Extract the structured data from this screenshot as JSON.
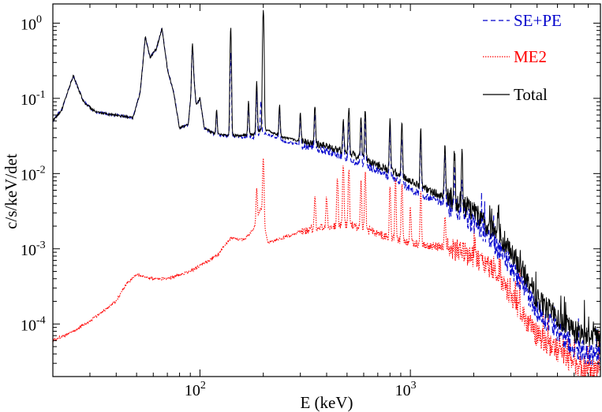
{
  "chart_data": {
    "type": "line",
    "title": "",
    "xlabel": "E (keV)",
    "ylabel": "c/s/keV/det",
    "xscale": "log",
    "yscale": "log",
    "xlim": [
      20,
      8000
    ],
    "ylim": [
      2e-05,
      1.8
    ],
    "grid": false,
    "legend_position": "top-right",
    "x_ticks": [
      {
        "value": 100,
        "label": "10",
        "sup": "2"
      },
      {
        "value": 1000,
        "label": "10",
        "sup": "3"
      }
    ],
    "y_ticks": [
      {
        "value": 1,
        "label": "10",
        "sup": "0"
      },
      {
        "value": 0.1,
        "label": "10",
        "sup": "-1"
      },
      {
        "value": 0.01,
        "label": "10",
        "sup": "-2"
      },
      {
        "value": 0.001,
        "label": "10",
        "sup": "-3"
      },
      {
        "value": 0.0001,
        "label": "10",
        "sup": "-4"
      }
    ],
    "series": [
      {
        "name": "SE+PE",
        "color": "#0000cc",
        "dash": "dashed",
        "continuum": [
          [
            20,
            0.05
          ],
          [
            22,
            0.07
          ],
          [
            25,
            0.2
          ],
          [
            28,
            0.09
          ],
          [
            32,
            0.065
          ],
          [
            40,
            0.06
          ],
          [
            48,
            0.055
          ],
          [
            52,
            0.12
          ],
          [
            55,
            0.65
          ],
          [
            58,
            0.35
          ],
          [
            62,
            0.45
          ],
          [
            66,
            0.85
          ],
          [
            70,
            0.25
          ],
          [
            75,
            0.12
          ],
          [
            80,
            0.04
          ],
          [
            88,
            0.045
          ],
          [
            93,
            0.25
          ],
          [
            96,
            0.08
          ],
          [
            100,
            0.1
          ],
          [
            105,
            0.04
          ],
          [
            120,
            0.032
          ],
          [
            150,
            0.031
          ],
          [
            180,
            0.03
          ],
          [
            200,
            0.035
          ],
          [
            250,
            0.027
          ],
          [
            300,
            0.024
          ],
          [
            400,
            0.02
          ],
          [
            500,
            0.016
          ],
          [
            600,
            0.013
          ],
          [
            700,
            0.011
          ],
          [
            800,
            0.009
          ],
          [
            900,
            0.0075
          ],
          [
            1000,
            0.0062
          ],
          [
            1200,
            0.0048
          ],
          [
            1400,
            0.004
          ],
          [
            1600,
            0.0035
          ],
          [
            1800,
            0.0028
          ],
          [
            2000,
            0.0022
          ],
          [
            2500,
            0.0012
          ],
          [
            3000,
            0.0006
          ],
          [
            3500,
            0.0003
          ],
          [
            4000,
            0.00015
          ],
          [
            5000,
            8e-05
          ],
          [
            6000,
            5e-05
          ],
          [
            7000,
            4e-05
          ],
          [
            8000,
            4e-05
          ]
        ],
        "peaks": [
          [
            92,
            0.3
          ],
          [
            120,
            0.035
          ],
          [
            140,
            0.4
          ],
          [
            170,
            0.05
          ],
          [
            186,
            0.09
          ],
          [
            195,
            0.055
          ],
          [
            239,
            0.045
          ],
          [
            300,
            0.035
          ],
          [
            352,
            0.045
          ],
          [
            480,
            0.03
          ],
          [
            510,
            0.035
          ],
          [
            583,
            0.03
          ],
          [
            610,
            0.04
          ],
          [
            800,
            0.03
          ],
          [
            911,
            0.025
          ],
          [
            1120,
            0.025
          ],
          [
            1460,
            0.015
          ],
          [
            1620,
            0.007
          ],
          [
            1760,
            0.0065
          ]
        ]
      },
      {
        "name": "ME2",
        "color": "#ff0000",
        "dash": "dotted",
        "continuum": [
          [
            20,
            6e-05
          ],
          [
            25,
            8e-05
          ],
          [
            30,
            0.00011
          ],
          [
            35,
            0.00015
          ],
          [
            40,
            0.0002
          ],
          [
            45,
            0.00035
          ],
          [
            50,
            0.00045
          ],
          [
            60,
            0.0004
          ],
          [
            70,
            0.0004
          ],
          [
            80,
            0.00045
          ],
          [
            90,
            0.0005
          ],
          [
            100,
            0.0006
          ],
          [
            120,
            0.0008
          ],
          [
            140,
            0.0014
          ],
          [
            160,
            0.0013
          ],
          [
            180,
            0.0018
          ],
          [
            195,
            0.0035
          ],
          [
            210,
            0.0012
          ],
          [
            250,
            0.0014
          ],
          [
            300,
            0.0017
          ],
          [
            400,
            0.002
          ],
          [
            500,
            0.0021
          ],
          [
            600,
            0.0019
          ],
          [
            700,
            0.0016
          ],
          [
            800,
            0.0014
          ],
          [
            900,
            0.0013
          ],
          [
            1000,
            0.0012
          ],
          [
            1200,
            0.0011
          ],
          [
            1500,
            0.00105
          ],
          [
            2000,
            0.0008
          ],
          [
            2500,
            0.0005
          ],
          [
            3000,
            0.00025
          ],
          [
            3500,
            0.00012
          ],
          [
            4000,
            7e-05
          ],
          [
            5000,
            4.5e-05
          ],
          [
            6000,
            3e-05
          ],
          [
            7000,
            2.5e-05
          ],
          [
            8000,
            2.5e-05
          ]
        ],
        "peaks": [
          [
            186,
            0.004
          ],
          [
            200,
            0.014
          ],
          [
            352,
            0.0035
          ],
          [
            400,
            0.0032
          ],
          [
            450,
            0.007
          ],
          [
            480,
            0.012
          ],
          [
            510,
            0.01
          ],
          [
            583,
            0.006
          ],
          [
            610,
            0.008
          ],
          [
            800,
            0.005
          ],
          [
            850,
            0.007
          ],
          [
            911,
            0.006
          ],
          [
            1000,
            0.0025
          ],
          [
            1120,
            0.0045
          ],
          [
            1460,
            0.0018
          ]
        ]
      },
      {
        "name": "Total",
        "color": "#000000",
        "dash": "solid",
        "continuum": [
          [
            20,
            0.05
          ],
          [
            22,
            0.07
          ],
          [
            25,
            0.2
          ],
          [
            28,
            0.09
          ],
          [
            32,
            0.065
          ],
          [
            40,
            0.06
          ],
          [
            48,
            0.055
          ],
          [
            52,
            0.12
          ],
          [
            55,
            0.65
          ],
          [
            58,
            0.35
          ],
          [
            62,
            0.45
          ],
          [
            66,
            0.85
          ],
          [
            70,
            0.25
          ],
          [
            75,
            0.12
          ],
          [
            80,
            0.04
          ],
          [
            88,
            0.045
          ],
          [
            93,
            0.25
          ],
          [
            96,
            0.08
          ],
          [
            100,
            0.1
          ],
          [
            105,
            0.04
          ],
          [
            120,
            0.033
          ],
          [
            150,
            0.032
          ],
          [
            180,
            0.033
          ],
          [
            200,
            0.04
          ],
          [
            250,
            0.03
          ],
          [
            300,
            0.027
          ],
          [
            400,
            0.023
          ],
          [
            500,
            0.019
          ],
          [
            600,
            0.016
          ],
          [
            700,
            0.013
          ],
          [
            800,
            0.011
          ],
          [
            900,
            0.0095
          ],
          [
            1000,
            0.008
          ],
          [
            1200,
            0.006
          ],
          [
            1400,
            0.0052
          ],
          [
            1600,
            0.0045
          ],
          [
            1800,
            0.0038
          ],
          [
            2000,
            0.003
          ],
          [
            2500,
            0.0018
          ],
          [
            3000,
            0.0009
          ],
          [
            3500,
            0.00045
          ],
          [
            4000,
            0.00022
          ],
          [
            5000,
            0.00012
          ],
          [
            6000,
            8e-05
          ],
          [
            7000,
            7e-05
          ],
          [
            8000,
            7e-05
          ]
        ],
        "peaks": [
          [
            92,
            0.35
          ],
          [
            120,
            0.04
          ],
          [
            140,
            0.85
          ],
          [
            170,
            0.06
          ],
          [
            186,
            0.13
          ],
          [
            200,
            1.5
          ],
          [
            239,
            0.05
          ],
          [
            300,
            0.04
          ],
          [
            352,
            0.055
          ],
          [
            480,
            0.035
          ],
          [
            510,
            0.06
          ],
          [
            583,
            0.04
          ],
          [
            610,
            0.06
          ],
          [
            800,
            0.04
          ],
          [
            911,
            0.035
          ],
          [
            1120,
            0.03
          ],
          [
            1460,
            0.018
          ],
          [
            1620,
            0.014
          ],
          [
            1760,
            0.013
          ],
          [
            2615,
            0.002
          ]
        ]
      }
    ]
  }
}
